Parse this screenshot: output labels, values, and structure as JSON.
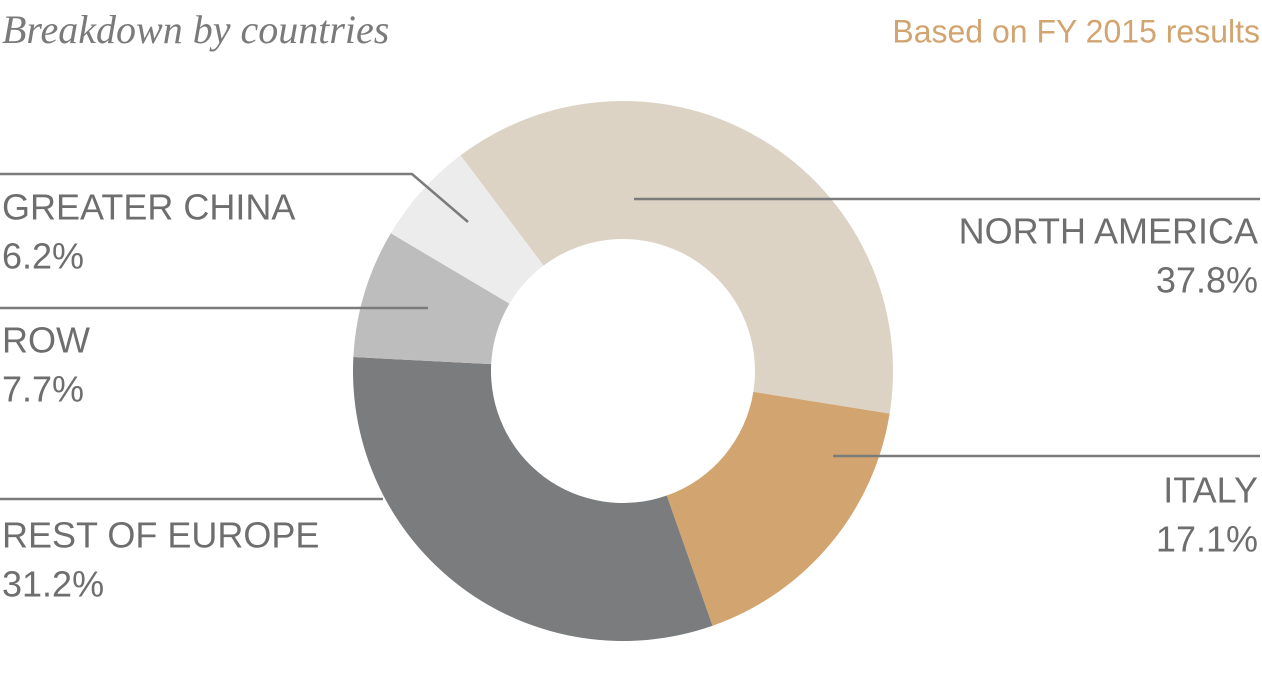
{
  "chart_data": {
    "type": "pie",
    "title": "Breakdown by countries",
    "subtitle": "Based on FY 2015 results",
    "categories": [
      "NORTH AMERICA",
      "ITALY",
      "REST OF EUROPE",
      "ROW",
      "GREATER CHINA"
    ],
    "values": [
      37.8,
      17.1,
      31.2,
      7.7,
      6.2
    ],
    "value_labels": [
      "37.8%",
      "17.1%",
      "31.2%",
      "7.7%",
      "6.2%"
    ],
    "colors": [
      "#dcd3c5",
      "#d2a46f",
      "#7b7c7d",
      "#bdbdbd",
      "#ececec"
    ]
  }
}
